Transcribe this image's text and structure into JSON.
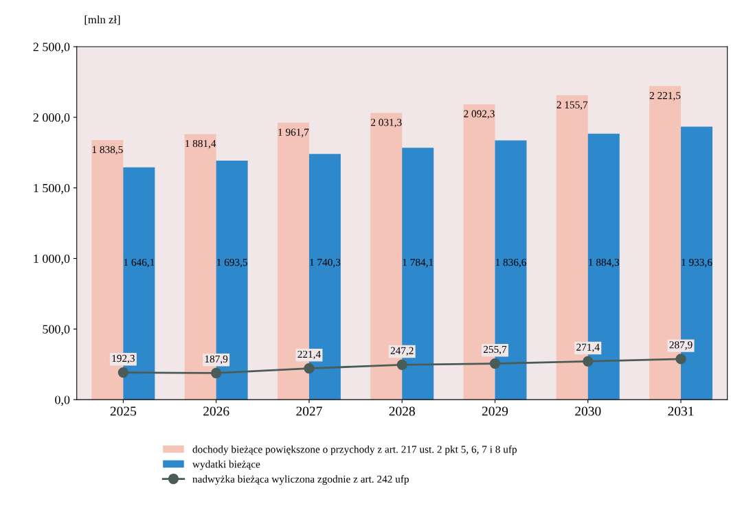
{
  "chart_data": {
    "type": "bar",
    "ylabel": "[mln zł]",
    "categories": [
      "2025",
      "2026",
      "2027",
      "2028",
      "2029",
      "2030",
      "2031"
    ],
    "series": [
      {
        "name": "dochody bieżące powiększone o przychody z art. 217 ust. 2 pkt 5, 6, 7 i 8 ufp",
        "color": "#f4c4b8",
        "values": [
          1838.5,
          1881.4,
          1961.7,
          2031.3,
          2092.3,
          2155.7,
          2221.5
        ],
        "value_labels": [
          "1 838,5",
          "1 881,4",
          "1 961,7",
          "2 031,3",
          "2 092,3",
          "2 155,7",
          "2 221,5"
        ]
      },
      {
        "name": "wydatki bieżące",
        "color": "#2e88cc",
        "values": [
          1646.1,
          1693.5,
          1740.3,
          1784.1,
          1836.6,
          1884.3,
          1933.6
        ],
        "value_labels": [
          "1 646,1",
          "1 693,5",
          "1 740,3",
          "1 784,1",
          "1 836,6",
          "1 884,3",
          "1 933,6"
        ]
      },
      {
        "name": "nadwyżka bieżąca wyliczona zgodnie z art. 242 ufp",
        "type": "line",
        "color": "#4a5c58",
        "marker": "circle",
        "line_style": "solid",
        "values": [
          192.3,
          187.9,
          221.4,
          247.2,
          255.7,
          271.4,
          287.9
        ],
        "value_labels": [
          "192,3",
          "187,9",
          "221,4",
          "247,2",
          "255,7",
          "271,4",
          "287,9"
        ]
      }
    ],
    "ylim": [
      0,
      2500
    ],
    "yticks": [
      {
        "value": 0,
        "label": "0,0"
      },
      {
        "value": 500,
        "label": "500,0"
      },
      {
        "value": 1000,
        "label": "1 000,0"
      },
      {
        "value": 1500,
        "label": "1 500,0"
      },
      {
        "value": 2000,
        "label": "2 000,0"
      },
      {
        "value": 2500,
        "label": "2 500,0"
      }
    ],
    "grid": false,
    "legend": "bottom"
  }
}
